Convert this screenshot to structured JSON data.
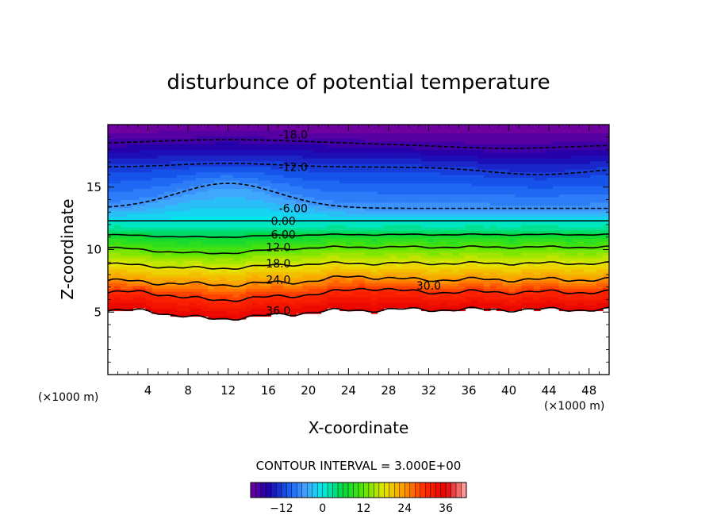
{
  "chart_data": {
    "type": "contour",
    "title": "disturbunce of potential temperature",
    "xlabel": "X-coordinate",
    "ylabel": "Z-coordinate",
    "x_unit_label": "(×1000 m)",
    "x_unit_label_right": "(×1000 m)",
    "xlim": [
      0,
      50
    ],
    "ylim": [
      0,
      20
    ],
    "x_ticks": [
      4,
      8,
      12,
      16,
      20,
      24,
      28,
      32,
      36,
      40,
      44,
      48
    ],
    "x_tick_labels": [
      "4",
      "8",
      "12",
      "16",
      "20",
      "24",
      "28",
      "32",
      "36",
      "40",
      "44",
      "48"
    ],
    "y_ticks": [
      5,
      10,
      15
    ],
    "y_tick_labels": [
      "5",
      "10",
      "15"
    ],
    "contour_interval_text": "CONTOUR INTERVAL = 3.000E+00",
    "contour_labels": [
      {
        "text": "-18.0",
        "x": 18.5,
        "z": 19.2
      },
      {
        "text": "-12.0",
        "x": 18.5,
        "z": 16.6
      },
      {
        "text": "-6.00",
        "x": 18.5,
        "z": 13.3
      },
      {
        "text": "0.00",
        "x": 17.5,
        "z": 12.3
      },
      {
        "text": "6.00",
        "x": 17.5,
        "z": 11.2
      },
      {
        "text": "12.0",
        "x": 17.0,
        "z": 10.2
      },
      {
        "text": "18.0",
        "x": 17.0,
        "z": 8.9
      },
      {
        "text": "24.0",
        "x": 17.0,
        "z": 7.6
      },
      {
        "text": "30.0",
        "x": 32.0,
        "z": 7.1
      },
      {
        "text": "36.0",
        "x": 17.0,
        "z": 5.1
      }
    ],
    "colorbar": {
      "min": -21,
      "max": 42,
      "tick_values": [
        -12,
        0,
        12,
        24,
        36
      ],
      "tick_labels": [
        "−12",
        "0",
        "12",
        "24",
        "36"
      ]
    }
  }
}
